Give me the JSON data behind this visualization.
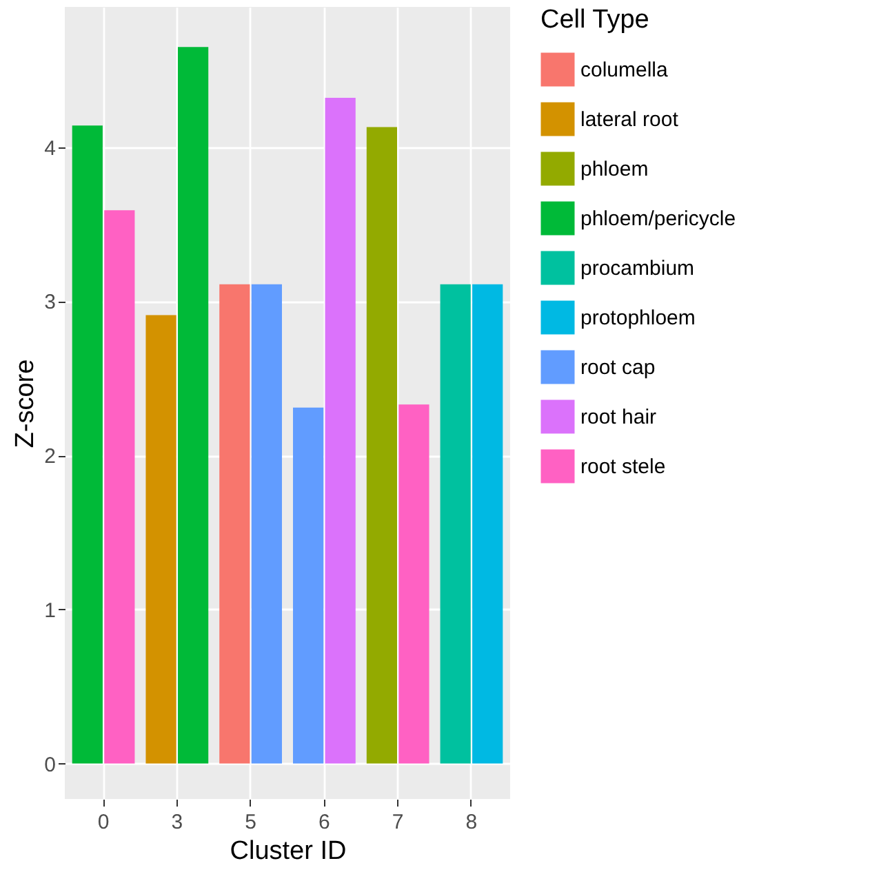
{
  "chart_data": {
    "type": "bar",
    "xlabel": "Cluster ID",
    "ylabel": "Z-score",
    "legend_title": "Cell Type",
    "categories": [
      "0",
      "3",
      "5",
      "6",
      "7",
      "8"
    ],
    "series": [
      {
        "name": "columella",
        "color": "#f8766d",
        "values": [
          null,
          null,
          3.11,
          null,
          null,
          null
        ]
      },
      {
        "name": "lateral root",
        "color": "#d39200",
        "values": [
          null,
          2.91,
          null,
          null,
          null,
          null
        ]
      },
      {
        "name": "phloem",
        "color": "#93aa00",
        "values": [
          null,
          null,
          null,
          null,
          4.13,
          null
        ]
      },
      {
        "name": "phloem/pericycle",
        "color": "#00ba38",
        "values": [
          4.14,
          4.65,
          null,
          null,
          null,
          null
        ]
      },
      {
        "name": "procambium",
        "color": "#00c19f",
        "values": [
          null,
          null,
          null,
          null,
          null,
          3.11
        ]
      },
      {
        "name": "protophloem",
        "color": "#00b9e3",
        "values": [
          null,
          null,
          null,
          null,
          null,
          3.11
        ]
      },
      {
        "name": "root cap",
        "color": "#619cff",
        "values": [
          null,
          null,
          3.11,
          2.31,
          null,
          null
        ]
      },
      {
        "name": "root hair",
        "color": "#db72fb",
        "values": [
          null,
          null,
          null,
          4.32,
          null,
          null
        ]
      },
      {
        "name": "root stele",
        "color": "#ff61c3",
        "values": [
          3.59,
          null,
          null,
          null,
          2.33,
          null
        ]
      }
    ],
    "ylim": [
      -0.23,
      4.91
    ],
    "yticks": [
      0,
      1,
      2,
      3,
      4
    ],
    "grid": true,
    "legend": "right"
  }
}
